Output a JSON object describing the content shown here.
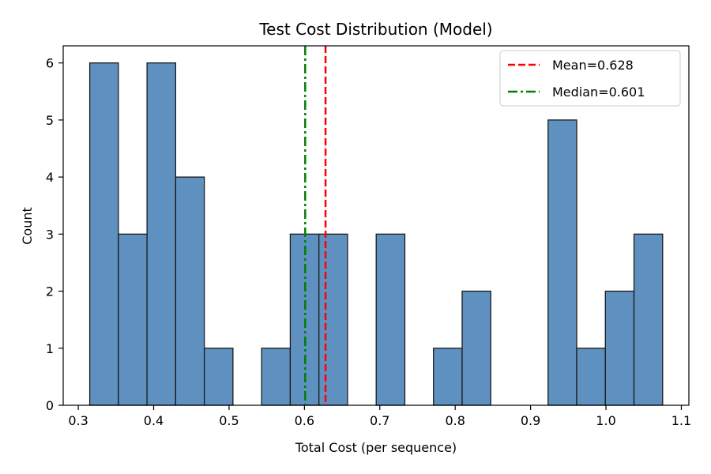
{
  "chart_data": {
    "type": "bar",
    "title": "Test Cost Distribution (Model)",
    "xlabel": "Total Cost (per sequence)",
    "ylabel": "Count",
    "xlim": [
      0.28,
      1.11
    ],
    "ylim": [
      0,
      6.3
    ],
    "x_ticks": [
      0.3,
      0.4,
      0.5,
      0.6,
      0.7,
      0.8,
      0.9,
      1.0,
      1.1
    ],
    "x_tick_labels": [
      "0.3",
      "0.4",
      "0.5",
      "0.6",
      "0.7",
      "0.8",
      "0.9",
      "1.0",
      "1.1"
    ],
    "y_ticks": [
      0,
      1,
      2,
      3,
      4,
      5,
      6
    ],
    "y_tick_labels": [
      "0",
      "1",
      "2",
      "3",
      "4",
      "5",
      "6"
    ],
    "bin_edges": [
      0.3152,
      0.3532,
      0.3912,
      0.4292,
      0.4672,
      0.5052,
      0.5432,
      0.5812,
      0.6192,
      0.6572,
      0.6952,
      0.7332,
      0.7712,
      0.8092,
      0.8472,
      0.8852,
      0.9232,
      0.9612,
      0.9992,
      1.0372,
      1.0752
    ],
    "counts": [
      6,
      3,
      6,
      4,
      1,
      0,
      1,
      3,
      3,
      0,
      3,
      0,
      1,
      2,
      0,
      0,
      5,
      1,
      2,
      3
    ],
    "bar_color": "#5f91c0",
    "edge_color": "#1a1a1a",
    "reference_lines": [
      {
        "label": "Mean=0.628",
        "x": 0.628,
        "color": "#ff0000",
        "style": "dashed"
      },
      {
        "label": "Median=0.601",
        "x": 0.601,
        "color": "#007f00",
        "style": "dashdot"
      }
    ],
    "legend_position": "top-right",
    "grid": false
  }
}
